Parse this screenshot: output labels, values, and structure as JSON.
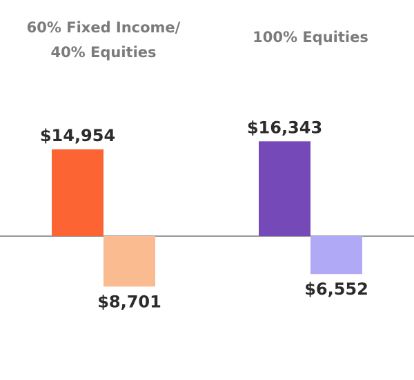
{
  "chart_data": {
    "type": "bar",
    "title": "",
    "groups": [
      {
        "title_lines": [
          "60% Fixed Income/",
          "40% Equities"
        ],
        "bars": [
          {
            "value": 14954,
            "label": "$14,954",
            "color": "#fd6433"
          },
          {
            "value": -8701,
            "label": "$8,701",
            "color": "#fbbb91"
          }
        ]
      },
      {
        "title_lines": [
          "100% Equities"
        ],
        "bars": [
          {
            "value": 16343,
            "label": "$16,343",
            "color": "#7649b8"
          },
          {
            "value": -6552,
            "label": "$6,552",
            "color": "#b0aaf6"
          }
        ]
      }
    ],
    "baseline_color": "#777777",
    "ylim": [
      -20000,
      20000
    ],
    "xlabel": "",
    "ylabel": "",
    "grid": false,
    "legend": "none"
  }
}
